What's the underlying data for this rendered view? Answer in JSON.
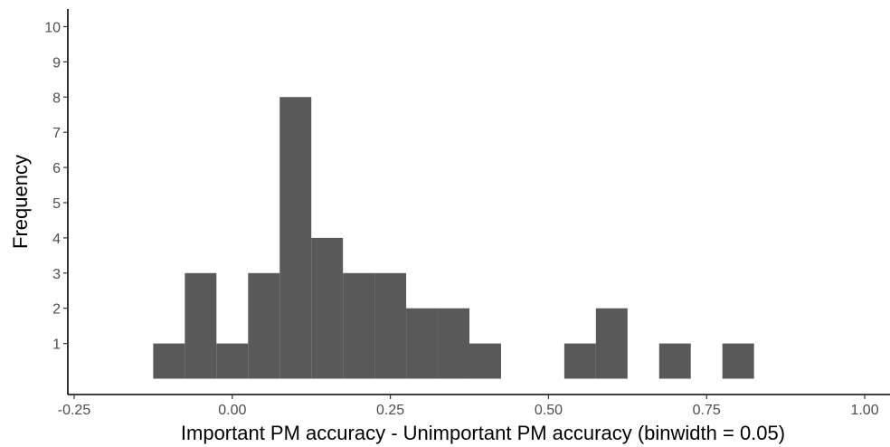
{
  "chart_data": {
    "type": "bar",
    "subtype": "histogram",
    "title": "",
    "xlabel": "Important PM accuracy - Unimportant PM accuracy (binwidth = 0.05)",
    "ylabel": "Frequency",
    "binwidth": 0.05,
    "xlim": [
      -0.26,
      1.04
    ],
    "ylim": [
      -0.45,
      10.5
    ],
    "grid": false,
    "legend": "none",
    "bar_color": "#595959",
    "x_ticks": [
      {
        "value": -0.25,
        "label": "-0.25"
      },
      {
        "value": 0.0,
        "label": "0.00"
      },
      {
        "value": 0.25,
        "label": "0.25"
      },
      {
        "value": 0.5,
        "label": "0.50"
      },
      {
        "value": 0.75,
        "label": "0.75"
      },
      {
        "value": 1.0,
        "label": "1.00"
      }
    ],
    "y_ticks": [
      {
        "value": 1,
        "label": "1"
      },
      {
        "value": 2,
        "label": "2"
      },
      {
        "value": 3,
        "label": "3"
      },
      {
        "value": 4,
        "label": "4"
      },
      {
        "value": 5,
        "label": "5"
      },
      {
        "value": 6,
        "label": "6"
      },
      {
        "value": 7,
        "label": "7"
      },
      {
        "value": 8,
        "label": "8"
      },
      {
        "value": 9,
        "label": "9"
      },
      {
        "value": 10,
        "label": "10"
      }
    ],
    "bins": [
      {
        "center": -0.1,
        "count": 1
      },
      {
        "center": -0.05,
        "count": 3
      },
      {
        "center": 0.0,
        "count": 1
      },
      {
        "center": 0.05,
        "count": 3
      },
      {
        "center": 0.1,
        "count": 8
      },
      {
        "center": 0.15,
        "count": 4
      },
      {
        "center": 0.2,
        "count": 3
      },
      {
        "center": 0.25,
        "count": 3
      },
      {
        "center": 0.3,
        "count": 2
      },
      {
        "center": 0.35,
        "count": 2
      },
      {
        "center": 0.4,
        "count": 1
      },
      {
        "center": 0.55,
        "count": 1
      },
      {
        "center": 0.6,
        "count": 2
      },
      {
        "center": 0.7,
        "count": 1
      },
      {
        "center": 0.8,
        "count": 1
      }
    ]
  }
}
